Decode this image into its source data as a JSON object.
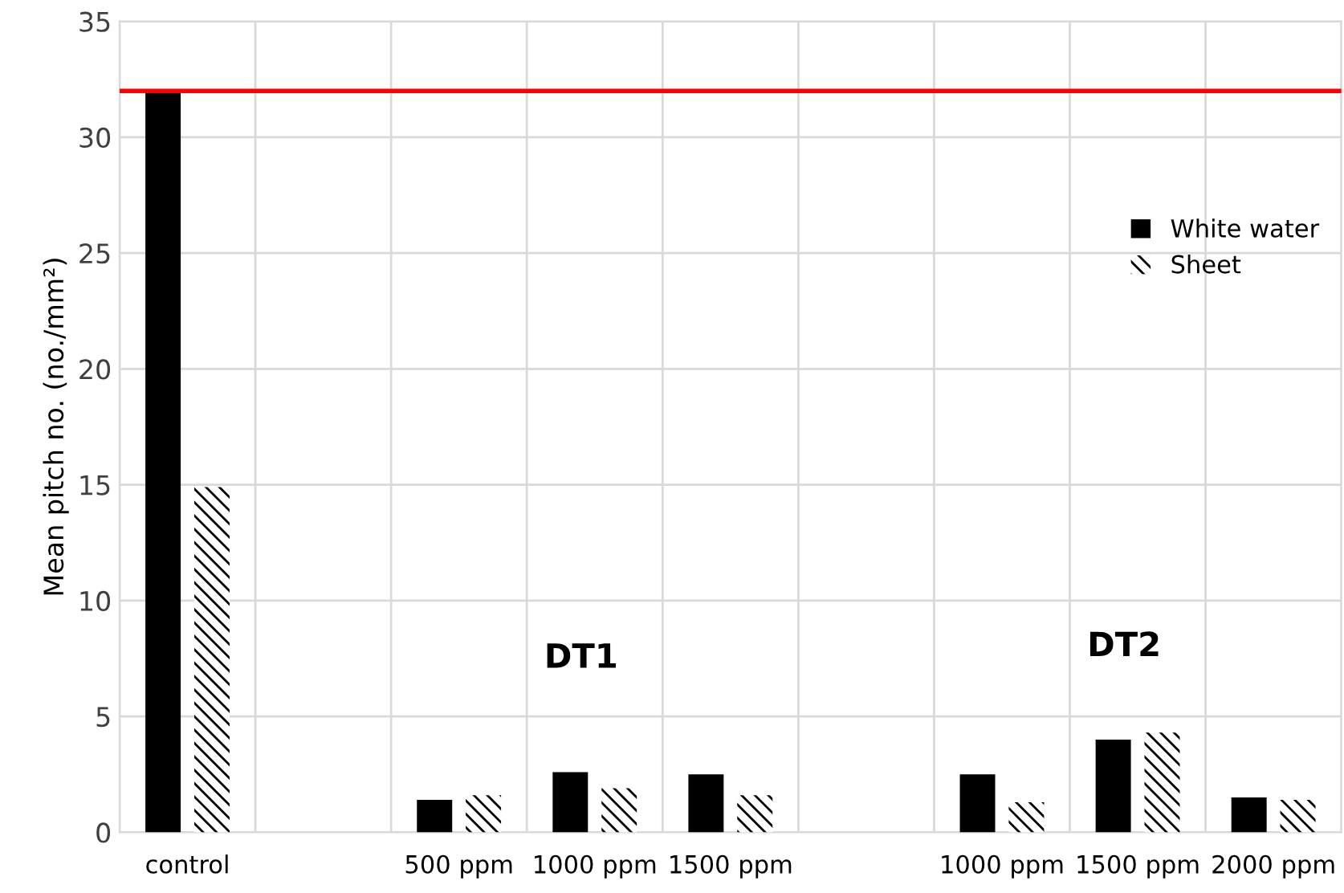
{
  "chart_data": {
    "type": "bar",
    "ylabel": "Mean pitch no. (no./mm²)",
    "categories": [
      "control",
      null,
      "500 ppm",
      "1000 ppm",
      "1500 ppm",
      null,
      "1000 ppm",
      "1500 ppm",
      "2000 ppm"
    ],
    "series": [
      {
        "name": "White water",
        "color": "#000000",
        "values": [
          31.9,
          null,
          1.4,
          2.6,
          2.5,
          null,
          2.5,
          4.0,
          1.5
        ]
      },
      {
        "name": "Sheet",
        "color": "#000000",
        "values": [
          14.9,
          null,
          1.6,
          1.9,
          1.6,
          null,
          1.3,
          4.3,
          1.4
        ]
      }
    ],
    "ylim": [
      0,
      35
    ],
    "yticks": [
      0,
      5,
      10,
      15,
      20,
      25,
      30,
      35
    ],
    "ref_lines": [
      {
        "axis": "y",
        "value": 32,
        "color": "#ff0000"
      }
    ],
    "annotations": [
      "DT1",
      "DT2"
    ],
    "grid": true,
    "legend": "right"
  }
}
